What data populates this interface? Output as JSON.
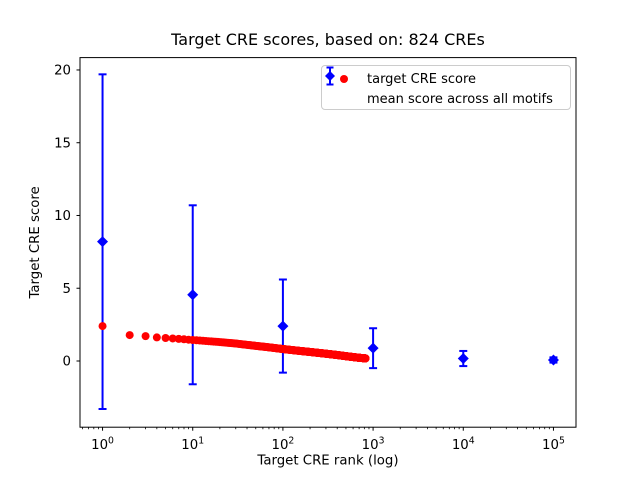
{
  "colors": {
    "red": "#ff0000",
    "blue": "#0000ff",
    "text": "#000000",
    "spine": "#000000",
    "legend_border": "#cccccc",
    "background": "#ffffff"
  },
  "chart_data": {
    "type": "scatter",
    "title": "Target CRE scores, based on: 824 CREs",
    "xlabel": "Target CRE rank (log)",
    "ylabel": "Target CRE score",
    "x_scale": "log",
    "xlim_log10": [
      -0.25,
      5.25
    ],
    "ylim": [
      -4.55,
      20.85
    ],
    "x_tick_base": "10",
    "x_tick_exponents": [
      0,
      1,
      2,
      3,
      4,
      5
    ],
    "y_ticks": [
      0,
      5,
      10,
      15,
      20
    ],
    "grid": false,
    "legend_position": "upper right",
    "legend": [
      "target CRE score",
      "mean score across all motifs"
    ],
    "series": [
      {
        "name": "target CRE score",
        "plot_type": "scatter",
        "marker": "circle",
        "color": "#ff0000",
        "n_points": 824,
        "note": "824 red points at integer ranks 1-824; values interpolated log-linearly between anchors",
        "anchors_rank_value": [
          [
            1,
            2.4
          ],
          [
            2,
            1.78
          ],
          [
            3,
            1.71
          ],
          [
            4,
            1.62
          ],
          [
            5,
            1.58
          ],
          [
            7,
            1.52
          ],
          [
            10,
            1.44
          ],
          [
            15,
            1.36
          ],
          [
            20,
            1.3
          ],
          [
            30,
            1.2
          ],
          [
            50,
            1.04
          ],
          [
            70,
            0.94
          ],
          [
            100,
            0.82
          ],
          [
            150,
            0.7
          ],
          [
            200,
            0.62
          ],
          [
            300,
            0.5
          ],
          [
            400,
            0.41
          ],
          [
            500,
            0.33
          ],
          [
            600,
            0.27
          ],
          [
            700,
            0.22
          ],
          [
            824,
            0.18
          ]
        ]
      },
      {
        "name": "mean score across all motifs",
        "plot_type": "errorbar",
        "marker": "diamond",
        "color": "#0000ff",
        "x": [
          1,
          10,
          100,
          1000,
          10000,
          100000
        ],
        "y": [
          8.2,
          4.55,
          2.4,
          0.88,
          0.17,
          0.07
        ],
        "yerr": [
          11.5,
          6.15,
          3.2,
          1.37,
          0.52,
          0.18
        ]
      }
    ]
  }
}
